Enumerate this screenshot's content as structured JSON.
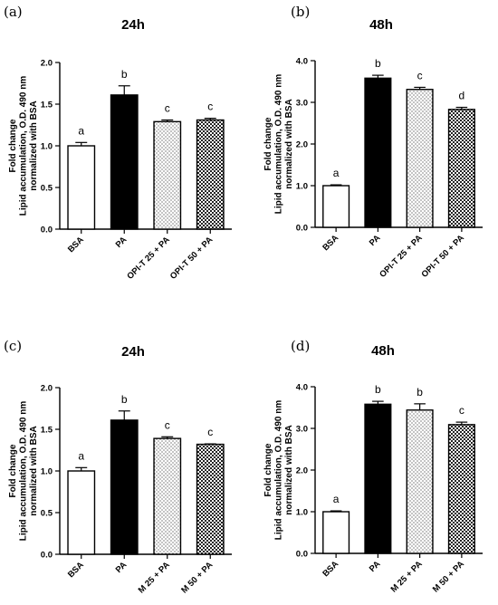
{
  "chart_data": [
    {
      "type": "bar",
      "panel_label": "(a)",
      "title": "24h",
      "ylabel": [
        "Fold change",
        "Lipid accumulation, O.D. 490 nm",
        "normalized with BSA"
      ],
      "categories": [
        "BSA",
        "PA",
        "OPI-T 25 + PA",
        "OPI-T 50 + PA"
      ],
      "values": [
        1.0,
        1.61,
        1.29,
        1.31
      ],
      "errors": [
        0.04,
        0.11,
        0.02,
        0.02
      ],
      "significance": [
        "a",
        "b",
        "c",
        "c"
      ],
      "fills": [
        "white",
        "black",
        "dots",
        "crosshatch"
      ],
      "ylim": [
        0,
        2.0
      ],
      "yticks": [
        "0.0",
        "0.5",
        "1.0",
        "1.5",
        "2.0"
      ]
    },
    {
      "type": "bar",
      "panel_label": "(b)",
      "title": "48h",
      "ylabel": [
        "Fold change",
        "Lipid accumulation, O.D. 490 nm",
        "normalized with BSA"
      ],
      "categories": [
        "BSA",
        "PA",
        "OPI-T 25 + PA",
        "OPI-T 50 + PA"
      ],
      "values": [
        1.0,
        3.58,
        3.31,
        2.83
      ],
      "errors": [
        0.02,
        0.07,
        0.05,
        0.05
      ],
      "significance": [
        "a",
        "b",
        "c",
        "d"
      ],
      "fills": [
        "white",
        "black",
        "dots",
        "crosshatch"
      ],
      "ylim": [
        0,
        4.0
      ],
      "yticks": [
        "0.0",
        "1.0",
        "2.0",
        "3.0",
        "4.0"
      ]
    },
    {
      "type": "bar",
      "panel_label": "(c)",
      "title": "24h",
      "ylabel": [
        "Fold change",
        "Lipid accumulation, O.D. 490 nm",
        "normalized with BSA"
      ],
      "categories": [
        "BSA",
        "PA",
        "M 25 + PA",
        "M 50 + PA"
      ],
      "values": [
        1.0,
        1.61,
        1.39,
        1.32
      ],
      "errors": [
        0.04,
        0.11,
        0.02,
        0.005
      ],
      "significance": [
        "a",
        "b",
        "c",
        "c"
      ],
      "fills": [
        "white",
        "black",
        "dots",
        "crosshatch"
      ],
      "ylim": [
        0,
        2.0
      ],
      "yticks": [
        "0.0",
        "0.5",
        "1.0",
        "1.5",
        "2.0"
      ]
    },
    {
      "type": "bar",
      "panel_label": "(d)",
      "title": "48h",
      "ylabel": [
        "Fold change",
        "Lipid accumulation, O.D. 490 nm",
        "normalized with BSA"
      ],
      "categories": [
        "BSA",
        "PA",
        "M 25 + PA",
        "M 50 + PA"
      ],
      "values": [
        1.0,
        3.58,
        3.44,
        3.09
      ],
      "errors": [
        0.02,
        0.07,
        0.15,
        0.06
      ],
      "significance": [
        "a",
        "b",
        "b",
        "c"
      ],
      "fills": [
        "white",
        "black",
        "dots",
        "crosshatch"
      ],
      "ylim": [
        0,
        4.0
      ],
      "yticks": [
        "0.0",
        "1.0",
        "2.0",
        "3.0",
        "4.0"
      ]
    }
  ]
}
